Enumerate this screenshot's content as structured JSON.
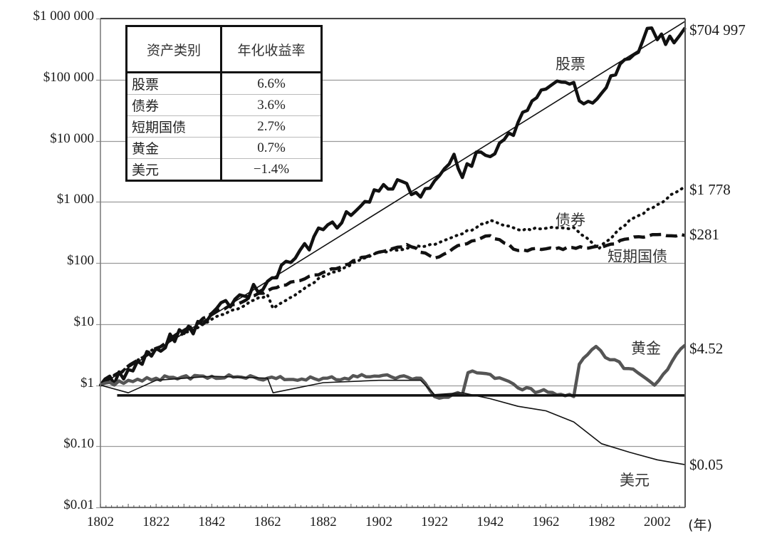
{
  "chart_data": {
    "type": "line",
    "title": "",
    "xlabel": "(年)",
    "ylabel": "",
    "yscale": "log",
    "ylim": [
      0.01,
      1000000
    ],
    "xlim": [
      1802,
      2012
    ],
    "grid": true,
    "y_ticks": [
      "$1 000 000",
      "$100 000",
      "$10 000",
      "$1 000",
      "$100",
      "$10",
      "$1",
      "$0.10",
      "$0.01"
    ],
    "x_ticks": [
      "1802",
      "1822",
      "1842",
      "1862",
      "1882",
      "1902",
      "1922",
      "1942",
      "1962",
      "1982",
      "2002"
    ],
    "x_unit": "(年)",
    "legend_table": {
      "headers": [
        "资产类别",
        "年化收益率"
      ],
      "rows": [
        {
          "asset": "股票",
          "return": "6.6%"
        },
        {
          "asset": "债券",
          "return": "3.6%"
        },
        {
          "asset": "短期国债",
          "return": "2.7%"
        },
        {
          "asset": "黄金",
          "return": "0.7%"
        },
        {
          "asset": "美元",
          "return": "−1.4%"
        }
      ]
    },
    "series": [
      {
        "name": "股票",
        "end_label": "$704 997",
        "style": "thick-solid-black",
        "x": [
          1802,
          1812,
          1822,
          1832,
          1842,
          1852,
          1862,
          1872,
          1882,
          1892,
          1902,
          1912,
          1917,
          1922,
          1929,
          1932,
          1937,
          1942,
          1952,
          1962,
          1966,
          1972,
          1974,
          1982,
          1992,
          2000,
          2002,
          2008,
          2012
        ],
        "values": [
          1,
          1.8,
          4,
          7,
          15,
          30,
          50,
          120,
          350,
          600,
          1500,
          2000,
          1200,
          2200,
          6000,
          2500,
          6500,
          5500,
          20000,
          70000,
          95000,
          90000,
          45000,
          60000,
          220000,
          700000,
          450000,
          400000,
          704997
        ]
      },
      {
        "name": "股票趋势线",
        "style": "thin-solid-black",
        "x": [
          1802,
          2012
        ],
        "values": [
          1,
          900000
        ]
      },
      {
        "name": "债券",
        "end_label": "$1 778",
        "style": "dotted-black",
        "x": [
          1802,
          1822,
          1842,
          1862,
          1864,
          1882,
          1902,
          1922,
          1932,
          1942,
          1952,
          1972,
          1981,
          1992,
          2002,
          2012
        ],
        "values": [
          1,
          4,
          12,
          30,
          18,
          60,
          150,
          200,
          300,
          500,
          350,
          380,
          170,
          500,
          900,
          1778
        ]
      },
      {
        "name": "短期国债",
        "end_label": "$281",
        "style": "dashed-black",
        "x": [
          1802,
          1822,
          1842,
          1862,
          1872,
          1882,
          1902,
          1912,
          1922,
          1932,
          1942,
          1952,
          1962,
          1982,
          1992,
          2002,
          2012
        ],
        "values": [
          1,
          4,
          15,
          35,
          50,
          70,
          150,
          200,
          120,
          200,
          280,
          160,
          170,
          180,
          250,
          290,
          281
        ]
      },
      {
        "name": "黄金",
        "end_label": "$4.52",
        "style": "thick-solid-gray",
        "x": [
          1802,
          1812,
          1822,
          1842,
          1862,
          1882,
          1902,
          1917,
          1922,
          1932,
          1934,
          1942,
          1952,
          1972,
          1974,
          1980,
          1985,
          1995,
          2001,
          2012
        ],
        "values": [
          1,
          1.2,
          1.3,
          1.4,
          1.3,
          1.3,
          1.4,
          1.3,
          0.65,
          0.7,
          1.6,
          1.5,
          0.9,
          0.65,
          2.2,
          4.3,
          2.6,
          1.6,
          1.0,
          4.52
        ]
      },
      {
        "name": "美元",
        "end_label": "$0.05",
        "style": "thin-solid-black",
        "x": [
          1802,
          1812,
          1822,
          1842,
          1862,
          1864,
          1882,
          1902,
          1917,
          1922,
          1932,
          1942,
          1952,
          1962,
          1972,
          1982,
          1992,
          2002,
          2012
        ],
        "values": [
          1,
          0.75,
          1.2,
          1.4,
          1.3,
          0.75,
          1.1,
          1.2,
          1.2,
          0.7,
          0.75,
          0.6,
          0.45,
          0.38,
          0.25,
          0.11,
          0.08,
          0.06,
          0.05
        ]
      },
      {
        "name": "基准线",
        "style": "thick-horizontal-black",
        "x": [
          1808,
          2012
        ],
        "values": [
          0.68,
          0.68
        ]
      }
    ]
  },
  "labels": {
    "stocks": "股票",
    "bonds": "债券",
    "bills": "短期国债",
    "gold": "黄金",
    "dollar": "美元",
    "stocks_end": "$704 997",
    "bonds_end": "$1 778",
    "bills_end": "$281",
    "gold_end": "$4.52",
    "dollar_end": "$0.05",
    "x_unit": "(年)"
  }
}
